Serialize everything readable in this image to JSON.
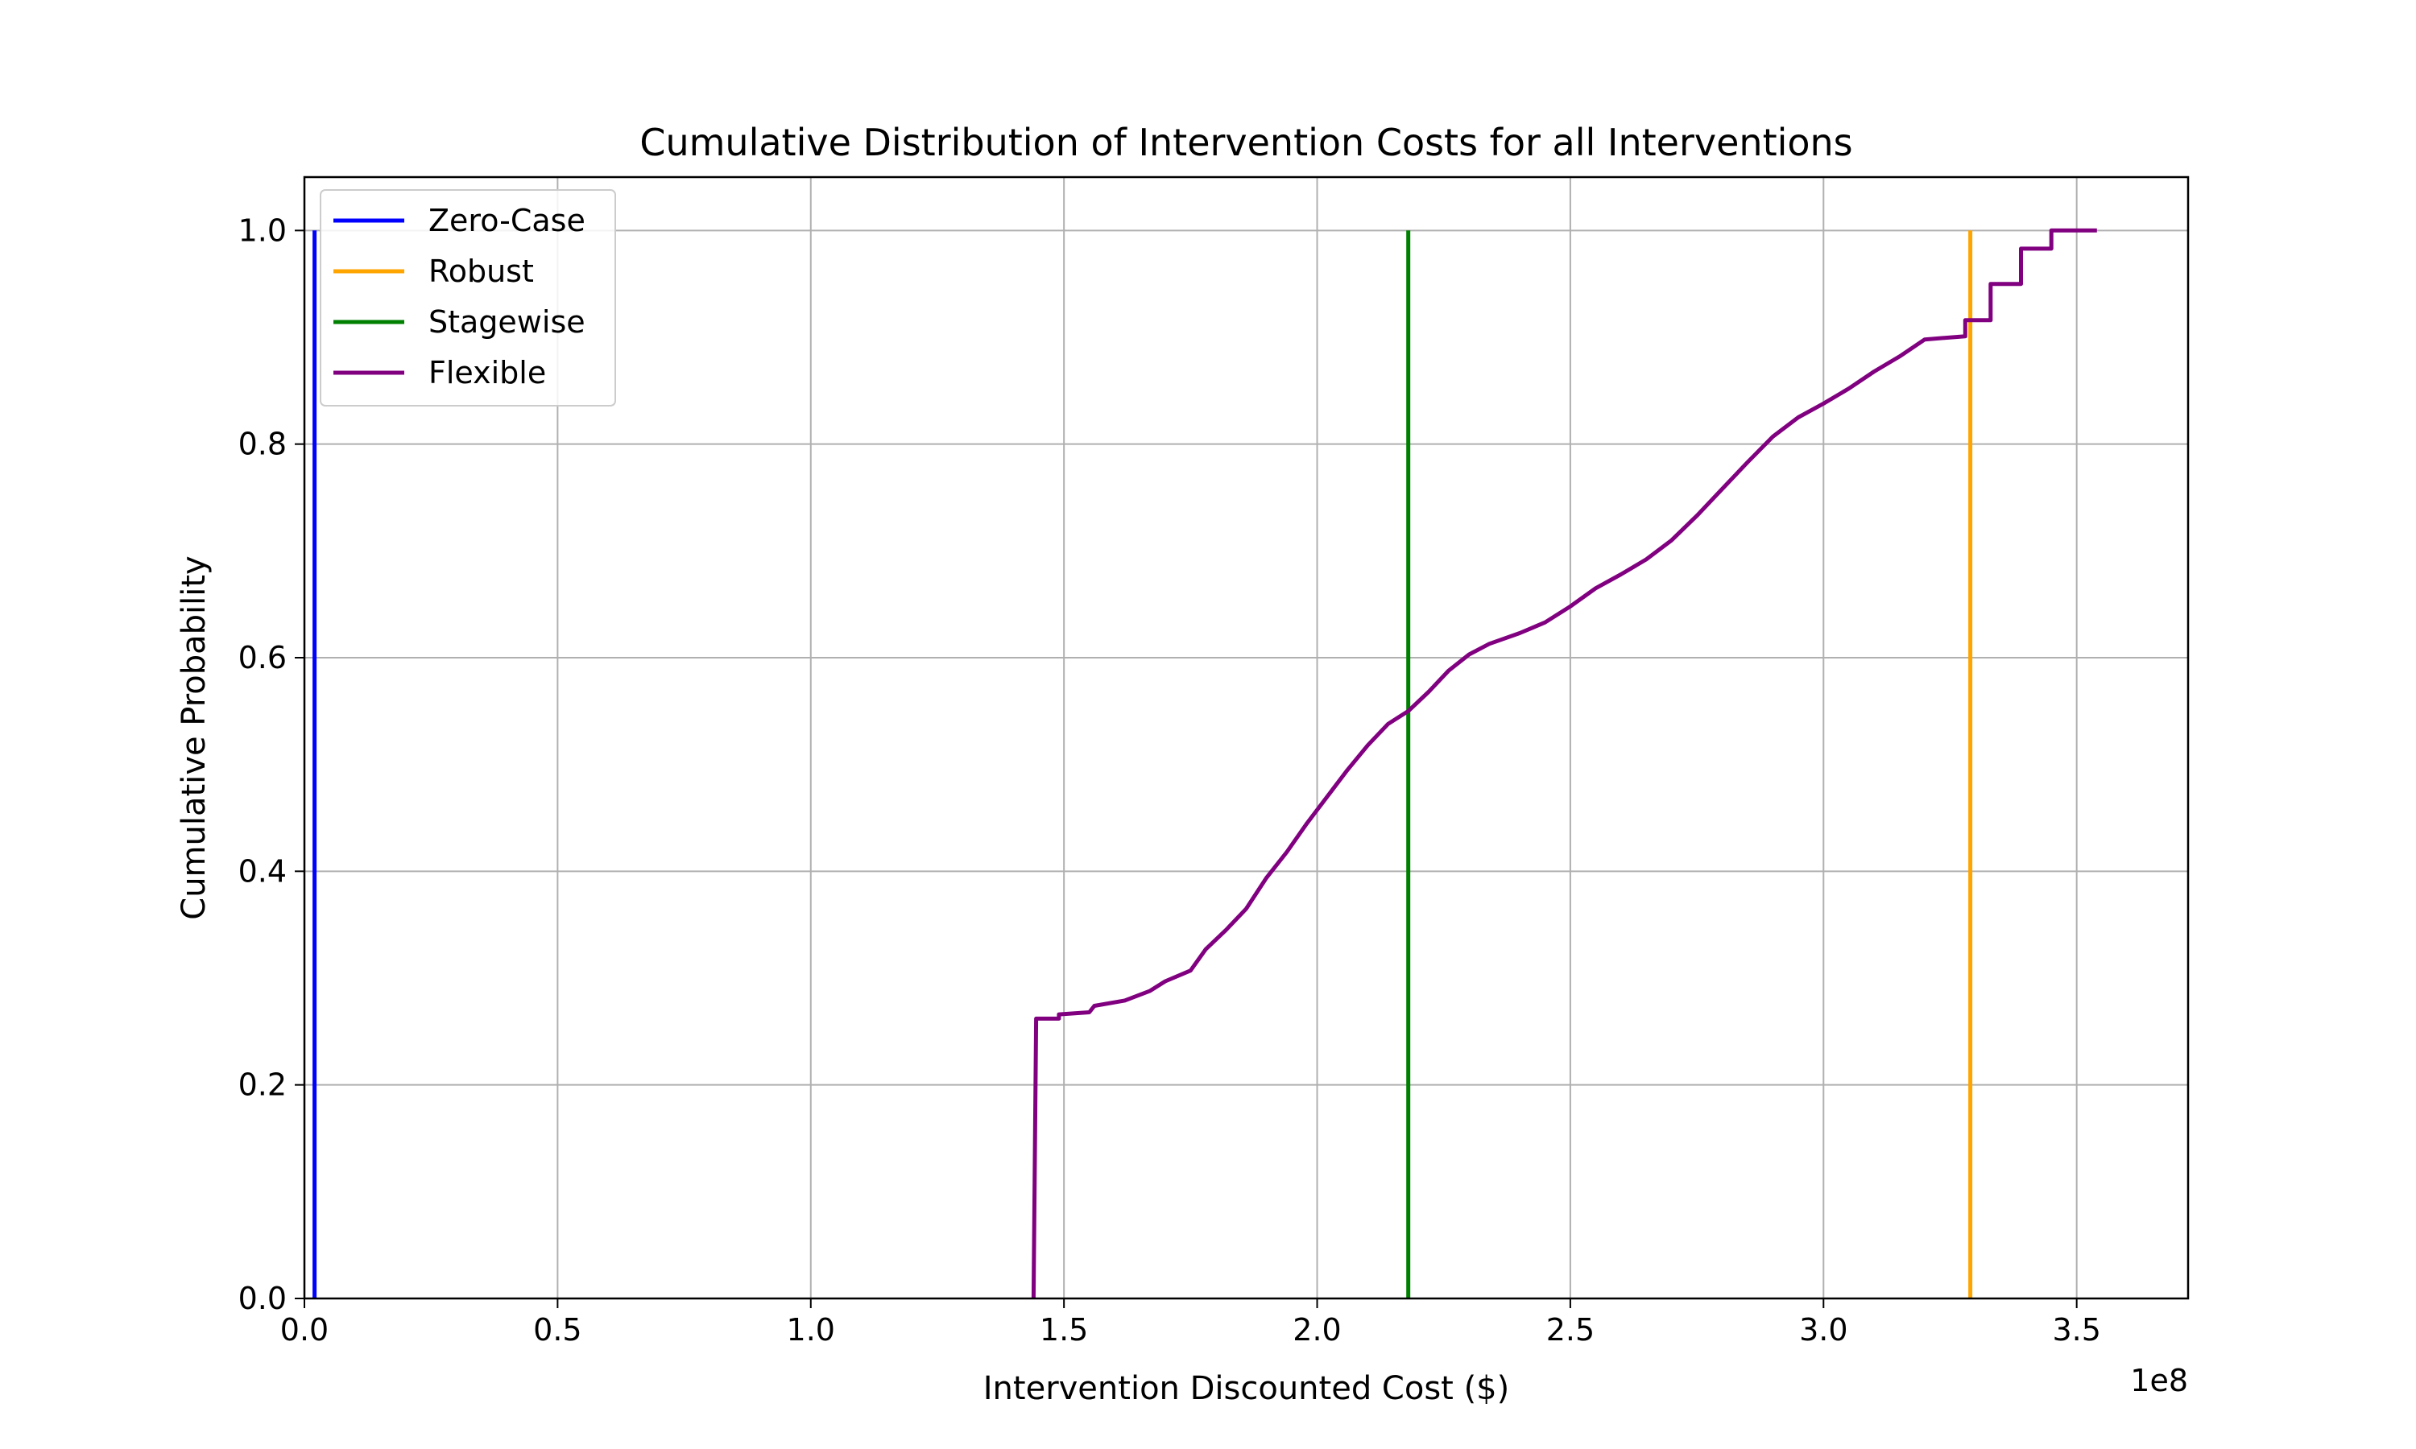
{
  "chart_data": {
    "type": "line",
    "title": "Cumulative Distribution of Intervention Costs for all Interventions",
    "xlabel": "Intervention Discounted Cost ($)",
    "ylabel": "Cumulative Probability",
    "x_offset_text": "1e8",
    "xlim": [
      0,
      3.72
    ],
    "ylim": [
      0,
      1.05
    ],
    "x_ticks": [
      0.0,
      0.5,
      1.0,
      1.5,
      2.0,
      2.5,
      3.0,
      3.5
    ],
    "x_tick_labels": [
      "0.0",
      "0.5",
      "1.0",
      "1.5",
      "2.0",
      "2.5",
      "3.0",
      "3.5"
    ],
    "y_ticks": [
      0.0,
      0.2,
      0.4,
      0.6,
      0.8,
      1.0
    ],
    "y_tick_labels": [
      "0.0",
      "0.2",
      "0.4",
      "0.6",
      "0.8",
      "1.0"
    ],
    "grid": true,
    "legend_position": "top-left",
    "series": [
      {
        "name": "Zero-Case",
        "color": "#0000ff",
        "points": [
          [
            0.02,
            0.0
          ],
          [
            0.02,
            1.0
          ]
        ]
      },
      {
        "name": "Robust",
        "color": "#ffa500",
        "points": [
          [
            3.29,
            0.0
          ],
          [
            3.29,
            1.0
          ]
        ]
      },
      {
        "name": "Stagewise",
        "color": "#008000",
        "points": [
          [
            2.18,
            0.0
          ],
          [
            2.18,
            1.0
          ]
        ]
      },
      {
        "name": "Flexible",
        "color": "#800080",
        "points": [
          [
            1.44,
            0.0
          ],
          [
            1.445,
            0.262
          ],
          [
            1.49,
            0.262
          ],
          [
            1.49,
            0.266
          ],
          [
            1.55,
            0.268
          ],
          [
            1.56,
            0.274
          ],
          [
            1.62,
            0.279
          ],
          [
            1.67,
            0.288
          ],
          [
            1.7,
            0.297
          ],
          [
            1.75,
            0.307
          ],
          [
            1.78,
            0.327
          ],
          [
            1.82,
            0.345
          ],
          [
            1.86,
            0.365
          ],
          [
            1.9,
            0.394
          ],
          [
            1.94,
            0.418
          ],
          [
            1.98,
            0.445
          ],
          [
            2.02,
            0.47
          ],
          [
            2.06,
            0.495
          ],
          [
            2.1,
            0.518
          ],
          [
            2.14,
            0.538
          ],
          [
            2.18,
            0.55
          ],
          [
            2.22,
            0.568
          ],
          [
            2.26,
            0.588
          ],
          [
            2.3,
            0.603
          ],
          [
            2.34,
            0.613
          ],
          [
            2.4,
            0.623
          ],
          [
            2.45,
            0.633
          ],
          [
            2.5,
            0.648
          ],
          [
            2.55,
            0.665
          ],
          [
            2.6,
            0.678
          ],
          [
            2.65,
            0.692
          ],
          [
            2.7,
            0.71
          ],
          [
            2.75,
            0.733
          ],
          [
            2.8,
            0.758
          ],
          [
            2.85,
            0.783
          ],
          [
            2.9,
            0.807
          ],
          [
            2.95,
            0.825
          ],
          [
            3.0,
            0.838
          ],
          [
            3.05,
            0.852
          ],
          [
            3.1,
            0.868
          ],
          [
            3.15,
            0.882
          ],
          [
            3.2,
            0.898
          ],
          [
            3.28,
            0.901
          ],
          [
            3.28,
            0.916
          ],
          [
            3.33,
            0.916
          ],
          [
            3.33,
            0.95
          ],
          [
            3.39,
            0.95
          ],
          [
            3.39,
            0.983
          ],
          [
            3.45,
            0.983
          ],
          [
            3.45,
            1.0
          ],
          [
            3.54,
            1.0
          ]
        ]
      }
    ]
  }
}
